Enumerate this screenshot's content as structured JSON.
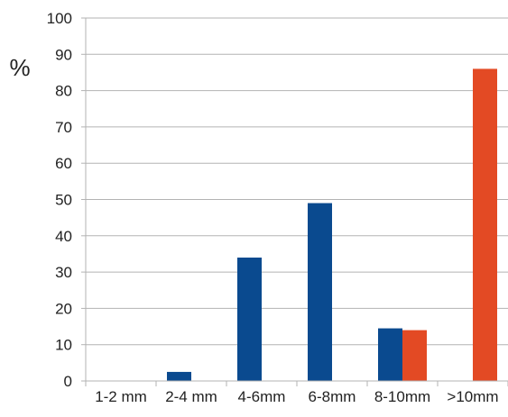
{
  "chart_data": {
    "type": "bar",
    "ylabel": "%",
    "categories": [
      "1-2 mm",
      "2-4 mm",
      "4-6mm",
      "6-8mm",
      "8-10mm",
      ">10mm"
    ],
    "series": [
      {
        "values": [
          0,
          2.5,
          34,
          49,
          14.5,
          0
        ],
        "color": "#0a4a8f"
      },
      {
        "values": [
          0,
          0,
          0,
          0,
          14,
          86
        ],
        "color": "#e34a24"
      }
    ],
    "ylim": [
      0,
      100
    ],
    "yticks": [
      0,
      10,
      20,
      30,
      40,
      50,
      60,
      70,
      80,
      90,
      100
    ],
    "grid": true,
    "legend": "none"
  }
}
